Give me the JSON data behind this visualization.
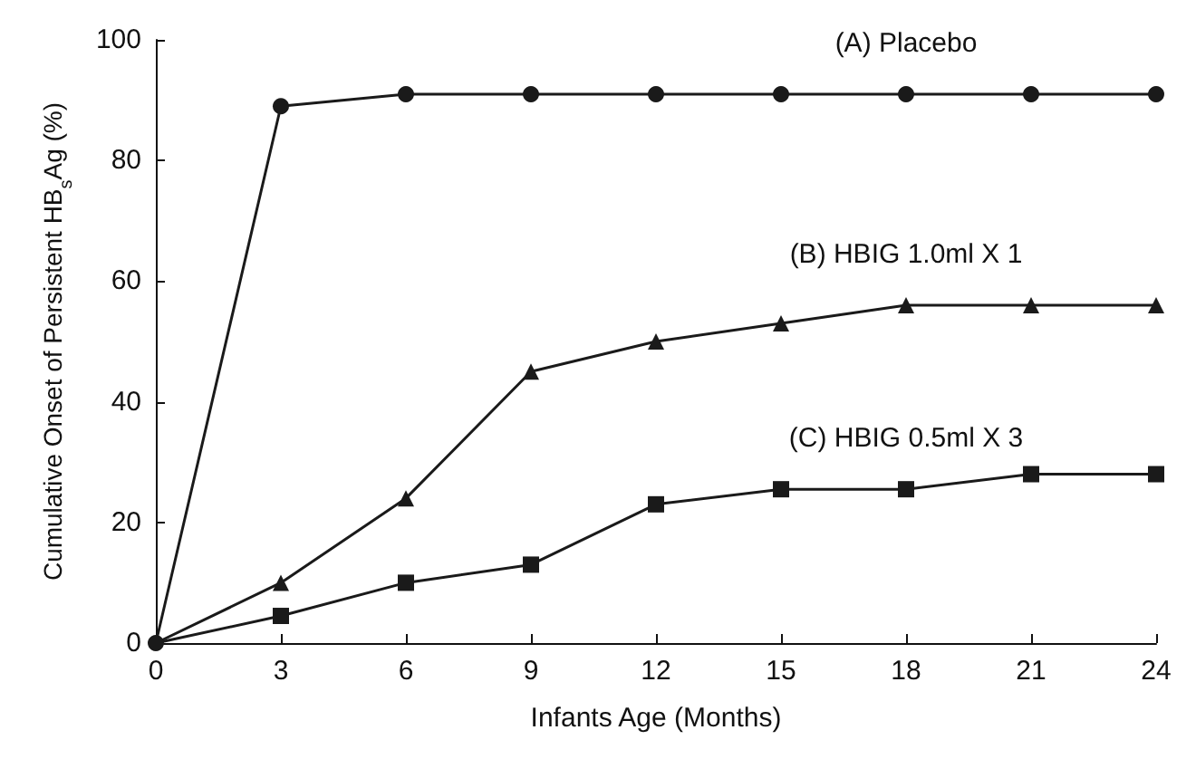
{
  "chart_data": {
    "type": "line",
    "xlabel": "Infants Age (Months)",
    "ylabel": "Cumulative Onset of Persistent HB$_{s}$Ag (%)",
    "x": [
      0,
      3,
      6,
      9,
      12,
      15,
      18,
      21,
      24
    ],
    "xlim": [
      0,
      24
    ],
    "xticks": [
      0,
      3,
      6,
      9,
      12,
      15,
      18,
      21,
      24
    ],
    "ylim": [
      0,
      100
    ],
    "yticks": [
      0,
      20,
      40,
      60,
      80,
      100
    ],
    "grid": false,
    "legend": false,
    "series": [
      {
        "name": "(A) Placebo",
        "color": "#1a1a1a",
        "marker": "circle",
        "values": [
          0,
          89,
          91,
          91,
          91,
          91,
          91,
          91,
          91
        ]
      },
      {
        "name": "(B) HBIG 1.0ml X 1",
        "color": "#1a1a1a",
        "marker": "triangle",
        "values": [
          0,
          10,
          24,
          45,
          50,
          53,
          56,
          56,
          56
        ]
      },
      {
        "name": "(C) HBIG 0.5ml X 3",
        "color": "#1a1a1a",
        "marker": "square",
        "values": [
          0,
          4.5,
          10,
          13,
          23,
          25.5,
          25.5,
          28,
          28
        ]
      }
    ]
  }
}
